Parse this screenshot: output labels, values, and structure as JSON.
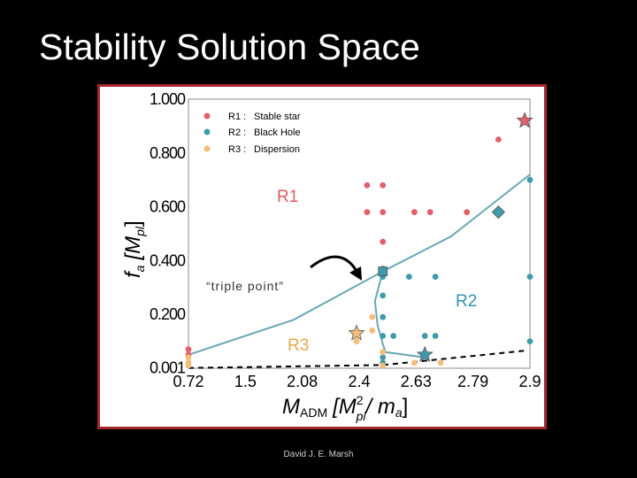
{
  "slide": {
    "title": "Stability Solution Space",
    "footer": "David J. E. Marsh"
  },
  "colors": {
    "frame": "#a3262b",
    "stable_star": "#e0606b",
    "black_hole": "#3f9bab",
    "dispersion": "#f3bd7a",
    "boundary_line": "#6aa7b3",
    "region_r1": "#e05a64",
    "region_r2": "#2f95b3",
    "region_r3": "#e7a84a"
  },
  "chart_data": {
    "type": "scatter",
    "xlabel_main": "M",
    "xlabel_sub": "ADM",
    "xlabel_unit_open": "[M",
    "xlabel_unit_sup": "2",
    "xlabel_unit_sub": "pl",
    "xlabel_unit_close": "/ m",
    "xlabel_unit_end_sub": "a",
    "xlabel_unit_end": "]",
    "ylabel_main": "f",
    "ylabel_sub": "a",
    "ylabel_unit_open": "[M",
    "ylabel_unit_sub": "pl",
    "ylabel_unit_close": "]",
    "x_ticks": [
      "0.72",
      "1.5",
      "2.08",
      "2.4",
      "2.63",
      "2.79",
      "2.9"
    ],
    "y_ticks": [
      "1.000",
      "0.800",
      "0.600",
      "0.400",
      "0.200",
      "0.001"
    ],
    "y_tick_values": [
      1.0,
      0.8,
      0.6,
      0.4,
      0.2,
      0.001
    ],
    "xlim": [
      0,
      6.5
    ],
    "ylim": [
      0,
      1.0
    ],
    "legend_position": "top-left",
    "legend": [
      {
        "id": "R1",
        "label_code": "R1 :",
        "label_name": "Stable star"
      },
      {
        "id": "R2",
        "label_code": "R2 :",
        "label_name": "Black Hole"
      },
      {
        "id": "R3",
        "label_code": "R3 :",
        "label_name": "Dispersion"
      }
    ],
    "series": [
      {
        "name": "R1",
        "points": [
          [
            0,
            0.07
          ],
          [
            0,
            0.05
          ],
          [
            3.4,
            0.68
          ],
          [
            3.7,
            0.68
          ],
          [
            3.7,
            0.58
          ],
          [
            3.7,
            0.47
          ],
          [
            3.4,
            0.58
          ],
          [
            4.6,
            0.58
          ],
          [
            4.3,
            0.58
          ],
          [
            5.3,
            0.58
          ],
          [
            5.9,
            0.58
          ],
          [
            5.9,
            0.85
          ],
          [
            3.7,
            0.37
          ]
        ]
      },
      {
        "name": "R2",
        "points": [
          [
            4.7,
            0.34
          ],
          [
            4.2,
            0.34
          ],
          [
            3.7,
            0.34
          ],
          [
            3.7,
            0.27
          ],
          [
            3.7,
            0.19
          ],
          [
            3.7,
            0.12
          ],
          [
            3.9,
            0.12
          ],
          [
            4.5,
            0.12
          ],
          [
            4.7,
            0.12
          ],
          [
            6.5,
            0.34
          ],
          [
            6.5,
            0.1
          ],
          [
            6.5,
            0.7
          ],
          [
            3.7,
            0.04
          ],
          [
            3.7,
            0.02
          ]
        ]
      },
      {
        "name": "R3",
        "points": [
          [
            0,
            0.04
          ],
          [
            0,
            0.02
          ],
          [
            0,
            0.01
          ],
          [
            3.5,
            0.19
          ],
          [
            3.5,
            0.14
          ],
          [
            3.2,
            0.1
          ],
          [
            3.7,
            0.06
          ],
          [
            3.7,
            0.01
          ],
          [
            4.3,
            0.02
          ],
          [
            4.8,
            0.02
          ]
        ]
      }
    ],
    "highlighted": [
      {
        "series": "R1",
        "marker": "star",
        "x": 6.4,
        "y": 0.92
      },
      {
        "series": "R2",
        "marker": "diamond",
        "x": 5.9,
        "y": 0.58
      },
      {
        "series": "R2",
        "marker": "square",
        "x": 3.7,
        "y": 0.36
      },
      {
        "series": "R3",
        "marker": "star",
        "x": 3.2,
        "y": 0.13
      },
      {
        "series": "R2",
        "marker": "star",
        "x": 4.5,
        "y": 0.05
      }
    ],
    "boundary_upper": [
      [
        0,
        0.05
      ],
      [
        2.0,
        0.18
      ],
      [
        3.7,
        0.36
      ],
      [
        5.0,
        0.49
      ],
      [
        6.5,
        0.72
      ]
    ],
    "boundary_lower": [
      [
        3.7,
        0.36
      ],
      [
        3.55,
        0.25
      ],
      [
        3.6,
        0.16
      ],
      [
        3.7,
        0.09
      ],
      [
        3.75,
        0.06
      ],
      [
        4.5,
        0.04
      ]
    ],
    "boundary_dashed": [
      [
        0,
        0.001
      ],
      [
        3.7,
        0.012
      ],
      [
        6.4,
        0.065
      ]
    ],
    "annotations": {
      "r1": "R1",
      "r2": "R2",
      "r3": "R3",
      "triple_point": "“triple point”"
    }
  }
}
